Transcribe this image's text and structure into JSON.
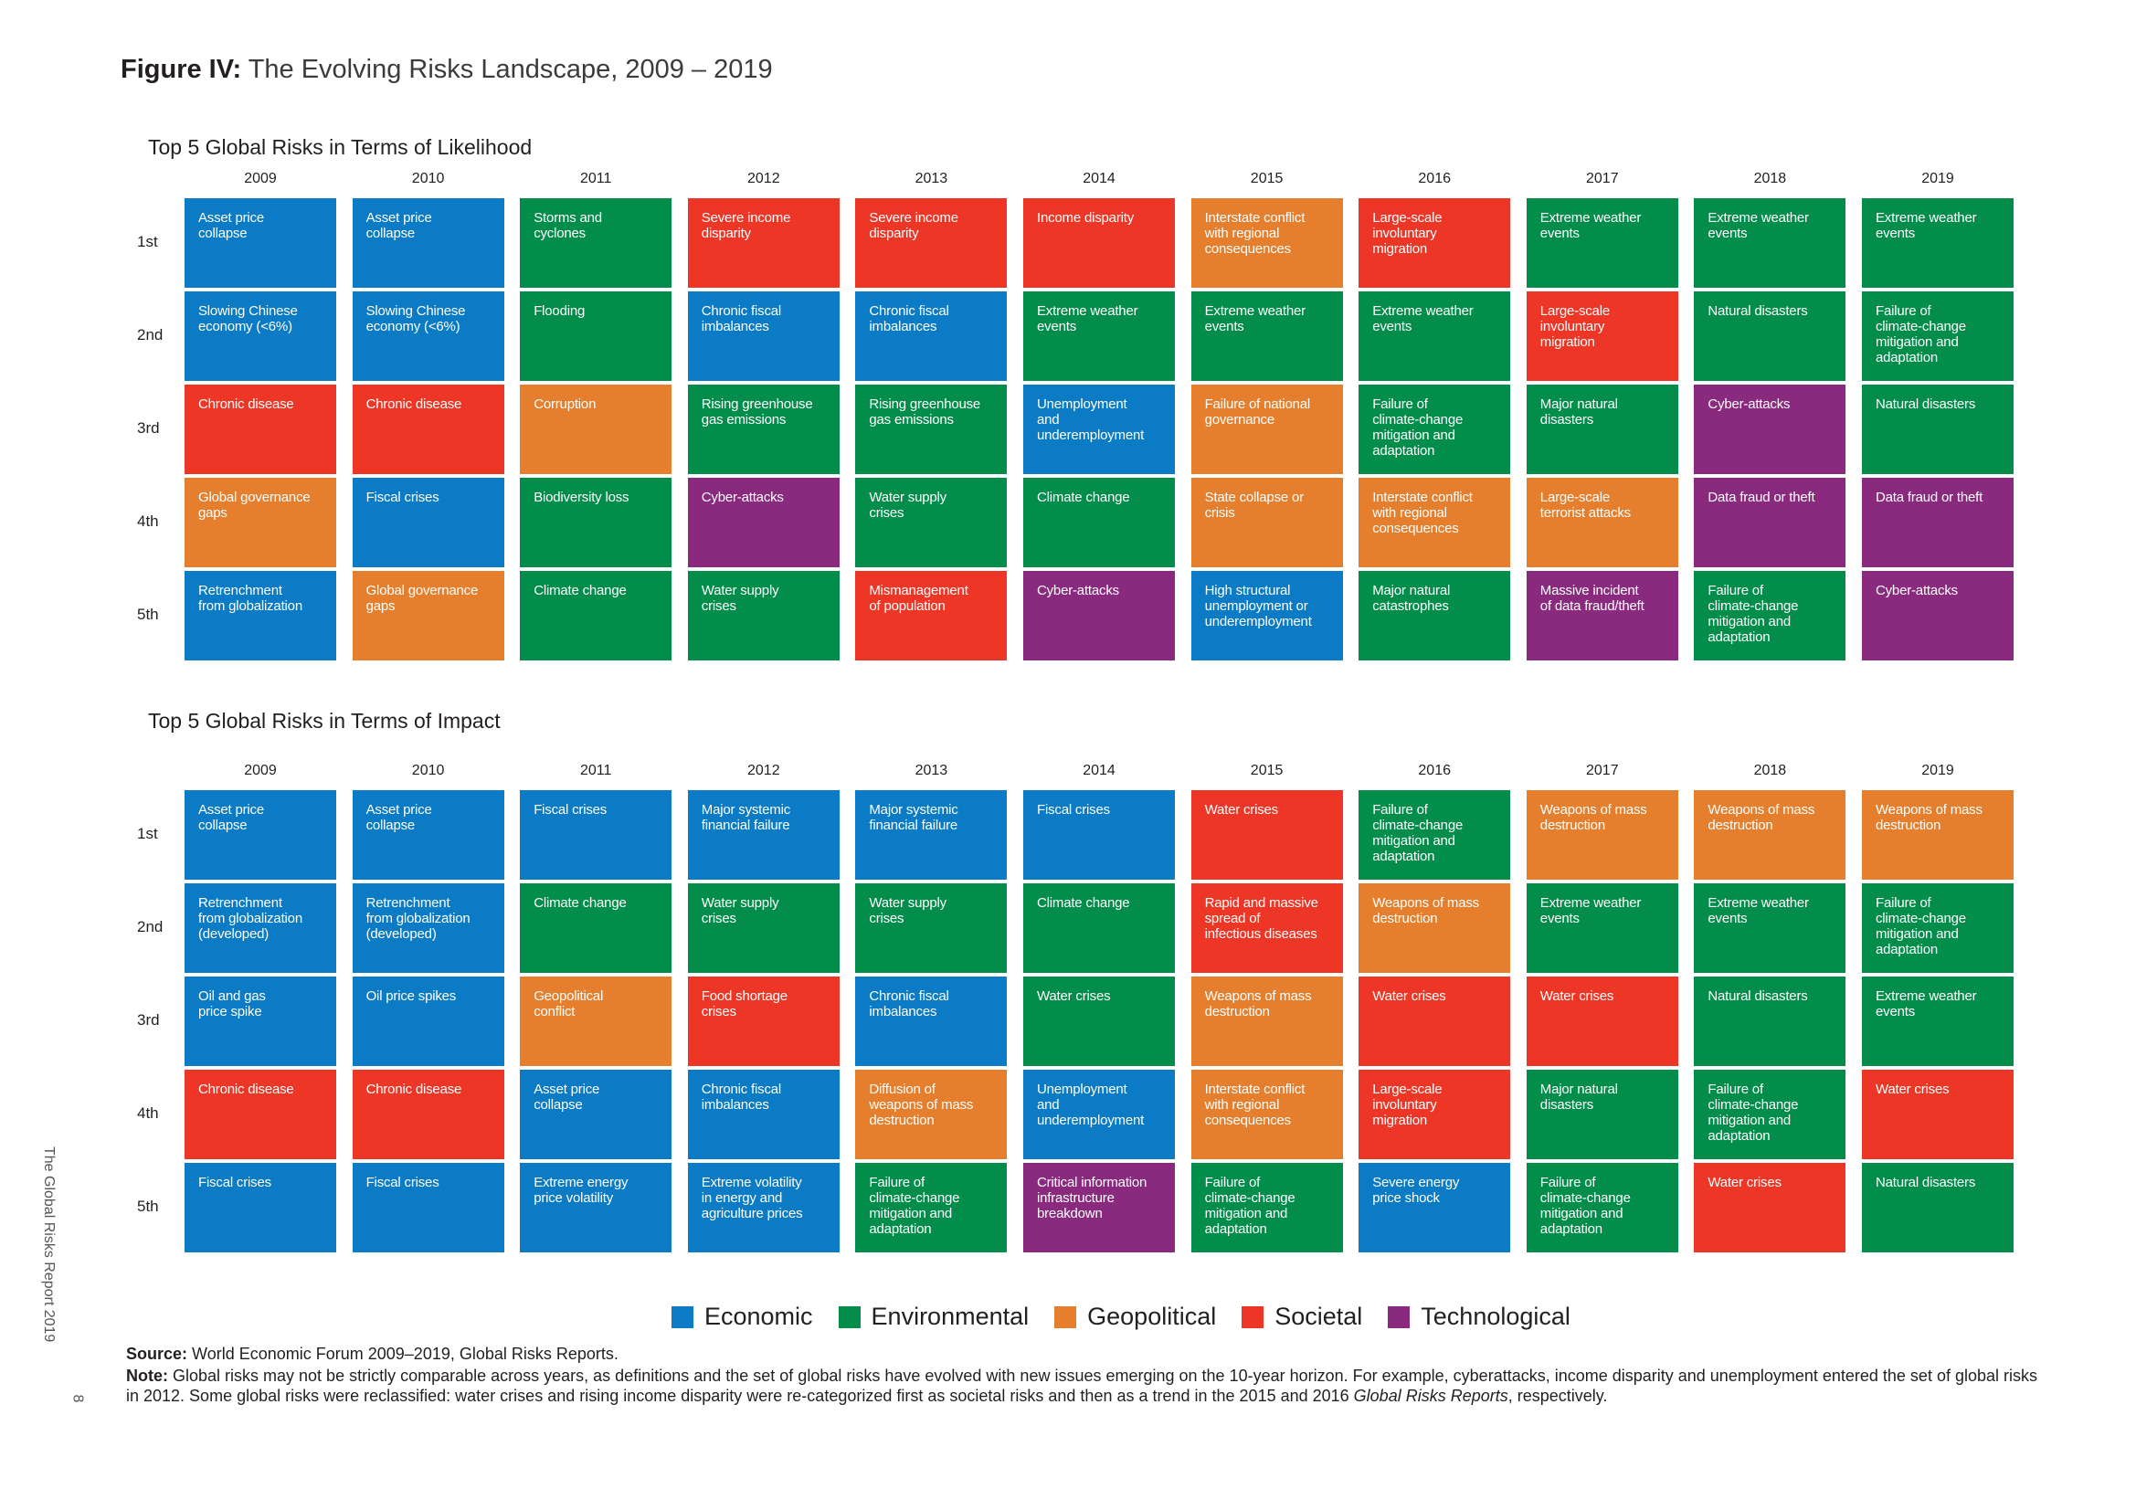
{
  "figure": {
    "label": "Figure IV:",
    "title": "The Evolving Risks Landscape, 2009 – 2019"
  },
  "years": [
    "2009",
    "2010",
    "2011",
    "2012",
    "2013",
    "2014",
    "2015",
    "2016",
    "2017",
    "2018",
    "2019"
  ],
  "ranks": [
    "1st",
    "2nd",
    "3rd",
    "4th",
    "5th"
  ],
  "colors": {
    "Economic": "#0a7bc4",
    "Environmental": "#038d4a",
    "Geopolitical": "#e57f2d",
    "Societal": "#ee3626",
    "Technological": "#8a2a7f"
  },
  "likelihood": {
    "title": "Top 5 Global Risks in Terms of Likelihood",
    "rows": [
      [
        {
          "t": "Asset price\ncollapse",
          "c": "Economic"
        },
        {
          "t": "Asset price\ncollapse",
          "c": "Economic"
        },
        {
          "t": "Storms and\ncyclones",
          "c": "Environmental"
        },
        {
          "t": "Severe income\ndisparity",
          "c": "Societal"
        },
        {
          "t": "Severe income\ndisparity",
          "c": "Societal"
        },
        {
          "t": "Income disparity",
          "c": "Societal"
        },
        {
          "t": "Interstate conflict\nwith regional\nconsequences",
          "c": "Geopolitical"
        },
        {
          "t": "Large-scale\ninvoluntary\nmigration",
          "c": "Societal"
        },
        {
          "t": "Extreme weather\nevents",
          "c": "Environmental"
        },
        {
          "t": "Extreme weather\nevents",
          "c": "Environmental"
        },
        {
          "t": "Extreme weather\nevents",
          "c": "Environmental"
        }
      ],
      [
        {
          "t": "Slowing Chinese\neconomy (<6%)",
          "c": "Economic"
        },
        {
          "t": "Slowing Chinese\neconomy (<6%)",
          "c": "Economic"
        },
        {
          "t": "Flooding",
          "c": "Environmental"
        },
        {
          "t": "Chronic fiscal\nimbalances",
          "c": "Economic"
        },
        {
          "t": "Chronic fiscal\nimbalances",
          "c": "Economic"
        },
        {
          "t": "Extreme weather\nevents",
          "c": "Environmental"
        },
        {
          "t": "Extreme weather\nevents",
          "c": "Environmental"
        },
        {
          "t": "Extreme weather\nevents",
          "c": "Environmental"
        },
        {
          "t": "Large-scale\ninvoluntary\nmigration",
          "c": "Societal"
        },
        {
          "t": "Natural disasters",
          "c": "Environmental"
        },
        {
          "t": "Failure of\nclimate-change\nmitigation and\nadaptation",
          "c": "Environmental"
        }
      ],
      [
        {
          "t": "Chronic disease",
          "c": "Societal"
        },
        {
          "t": "Chronic disease",
          "c": "Societal"
        },
        {
          "t": "Corruption",
          "c": "Geopolitical"
        },
        {
          "t": "Rising greenhouse\ngas emissions",
          "c": "Environmental"
        },
        {
          "t": "Rising greenhouse\ngas emissions",
          "c": "Environmental"
        },
        {
          "t": "Unemployment\nand\nunderemployment",
          "c": "Economic"
        },
        {
          "t": "Failure of national\ngovernance",
          "c": "Geopolitical"
        },
        {
          "t": "Failure of\nclimate-change\nmitigation and\nadaptation",
          "c": "Environmental"
        },
        {
          "t": "Major natural\ndisasters",
          "c": "Environmental"
        },
        {
          "t": "Cyber-attacks",
          "c": "Technological"
        },
        {
          "t": "Natural disasters",
          "c": "Environmental"
        }
      ],
      [
        {
          "t": "Global governance\ngaps",
          "c": "Geopolitical"
        },
        {
          "t": "Fiscal crises",
          "c": "Economic"
        },
        {
          "t": "Biodiversity loss",
          "c": "Environmental"
        },
        {
          "t": "Cyber-attacks",
          "c": "Technological"
        },
        {
          "t": "Water supply\ncrises",
          "c": "Environmental"
        },
        {
          "t": "Climate change",
          "c": "Environmental"
        },
        {
          "t": "State collapse or\ncrisis",
          "c": "Geopolitical"
        },
        {
          "t": "Interstate conflict\nwith regional\nconsequences",
          "c": "Geopolitical"
        },
        {
          "t": "Large-scale\nterrorist attacks",
          "c": "Geopolitical"
        },
        {
          "t": "Data fraud or theft",
          "c": "Technological"
        },
        {
          "t": "Data fraud or theft",
          "c": "Technological"
        }
      ],
      [
        {
          "t": "Retrenchment\nfrom globalization",
          "c": "Economic"
        },
        {
          "t": "Global governance\ngaps",
          "c": "Geopolitical"
        },
        {
          "t": "Climate change",
          "c": "Environmental"
        },
        {
          "t": "Water supply\ncrises",
          "c": "Environmental"
        },
        {
          "t": "Mismanagement\nof population",
          "c": "Societal"
        },
        {
          "t": "Cyber-attacks",
          "c": "Technological"
        },
        {
          "t": "High structural\nunemployment or\nunderemployment",
          "c": "Economic"
        },
        {
          "t": "Major natural\ncatastrophes",
          "c": "Environmental"
        },
        {
          "t": "Massive incident\nof data fraud/theft",
          "c": "Technological"
        },
        {
          "t": "Failure of\nclimate-change\nmitigation and\nadaptation",
          "c": "Environmental"
        },
        {
          "t": "Cyber-attacks",
          "c": "Technological"
        }
      ]
    ]
  },
  "impact": {
    "title": "Top 5 Global Risks in Terms of Impact",
    "rows": [
      [
        {
          "t": "Asset price\ncollapse",
          "c": "Economic"
        },
        {
          "t": "Asset price\ncollapse",
          "c": "Economic"
        },
        {
          "t": "Fiscal crises",
          "c": "Economic"
        },
        {
          "t": "Major systemic\nfinancial failure",
          "c": "Economic"
        },
        {
          "t": "Major systemic\nfinancial failure",
          "c": "Economic"
        },
        {
          "t": "Fiscal crises",
          "c": "Economic"
        },
        {
          "t": "Water crises",
          "c": "Societal"
        },
        {
          "t": "Failure of\nclimate-change\nmitigation and\nadaptation",
          "c": "Environmental"
        },
        {
          "t": "Weapons of mass\ndestruction",
          "c": "Geopolitical"
        },
        {
          "t": "Weapons of mass\ndestruction",
          "c": "Geopolitical"
        },
        {
          "t": "Weapons of mass\ndestruction",
          "c": "Geopolitical"
        }
      ],
      [
        {
          "t": "Retrenchment\nfrom globalization\n(developed)",
          "c": "Economic"
        },
        {
          "t": "Retrenchment\nfrom globalization\n(developed)",
          "c": "Economic"
        },
        {
          "t": "Climate change",
          "c": "Environmental"
        },
        {
          "t": "Water supply\ncrises",
          "c": "Environmental"
        },
        {
          "t": "Water supply\ncrises",
          "c": "Environmental"
        },
        {
          "t": "Climate change",
          "c": "Environmental"
        },
        {
          "t": "Rapid and massive\nspread of\ninfectious diseases",
          "c": "Societal"
        },
        {
          "t": "Weapons of mass\ndestruction",
          "c": "Geopolitical"
        },
        {
          "t": "Extreme weather\nevents",
          "c": "Environmental"
        },
        {
          "t": "Extreme weather\nevents",
          "c": "Environmental"
        },
        {
          "t": "Failure of\nclimate-change\nmitigation and\nadaptation",
          "c": "Environmental"
        }
      ],
      [
        {
          "t": "Oil and gas\nprice spike",
          "c": "Economic"
        },
        {
          "t": "Oil price spikes",
          "c": "Economic"
        },
        {
          "t": "Geopolitical\nconflict",
          "c": "Geopolitical"
        },
        {
          "t": "Food shortage\ncrises",
          "c": "Societal"
        },
        {
          "t": "Chronic fiscal\nimbalances",
          "c": "Economic"
        },
        {
          "t": "Water crises",
          "c": "Environmental"
        },
        {
          "t": "Weapons of mass\ndestruction",
          "c": "Geopolitical"
        },
        {
          "t": "Water crises",
          "c": "Societal"
        },
        {
          "t": "Water crises",
          "c": "Societal"
        },
        {
          "t": "Natural disasters",
          "c": "Environmental"
        },
        {
          "t": "Extreme weather\nevents",
          "c": "Environmental"
        }
      ],
      [
        {
          "t": "Chronic disease",
          "c": "Societal"
        },
        {
          "t": "Chronic disease",
          "c": "Societal"
        },
        {
          "t": "Asset price\ncollapse",
          "c": "Economic"
        },
        {
          "t": "Chronic fiscal\nimbalances",
          "c": "Economic"
        },
        {
          "t": "Diffusion of\nweapons of mass\ndestruction",
          "c": "Geopolitical"
        },
        {
          "t": "Unemployment\nand\nunderemployment",
          "c": "Economic"
        },
        {
          "t": "Interstate conflict\nwith regional\nconsequences",
          "c": "Geopolitical"
        },
        {
          "t": "Large-scale\ninvoluntary\nmigration",
          "c": "Societal"
        },
        {
          "t": "Major natural\ndisasters",
          "c": "Environmental"
        },
        {
          "t": "Failure of\nclimate-change\nmitigation and\nadaptation",
          "c": "Environmental"
        },
        {
          "t": "Water crises",
          "c": "Societal"
        }
      ],
      [
        {
          "t": "Fiscal crises",
          "c": "Economic"
        },
        {
          "t": "Fiscal crises",
          "c": "Economic"
        },
        {
          "t": "Extreme energy\nprice volatility",
          "c": "Economic"
        },
        {
          "t": "Extreme volatility\nin energy and\nagriculture prices",
          "c": "Economic"
        },
        {
          "t": "Failure of\nclimate-change\nmitigation and\nadaptation",
          "c": "Environmental"
        },
        {
          "t": "Critical information\ninfrastructure\nbreakdown",
          "c": "Technological"
        },
        {
          "t": "Failure of\nclimate-change\nmitigation and\nadaptation",
          "c": "Environmental"
        },
        {
          "t": "Severe energy\nprice shock",
          "c": "Economic"
        },
        {
          "t": "Failure of\nclimate-change\nmitigation and\nadaptation",
          "c": "Environmental"
        },
        {
          "t": "Water crises",
          "c": "Societal"
        },
        {
          "t": "Natural disasters",
          "c": "Environmental"
        }
      ]
    ]
  },
  "legend": [
    "Economic",
    "Environmental",
    "Geopolitical",
    "Societal",
    "Technological"
  ],
  "source": {
    "label": "Source:",
    "text": " World Economic Forum 2009–2019, Global Risks Reports."
  },
  "note": {
    "label": "Note:",
    "text": " Global risks may not be strictly comparable across years, as definitions and the set of global risks have evolved with new issues emerging on the 10-year horizon. For example, cyberattacks, income disparity and unemployment entered the set of global risks in 2012. Some global risks were reclassified: water crises and rising income disparity were re-categorized first as societal risks and then as a trend in the 2015 and 2016 ",
    "italic": "Global Risks Reports",
    "end": ", respectively."
  },
  "sidebar": {
    "report": "The Global Risks Report 2019",
    "page": "8"
  }
}
